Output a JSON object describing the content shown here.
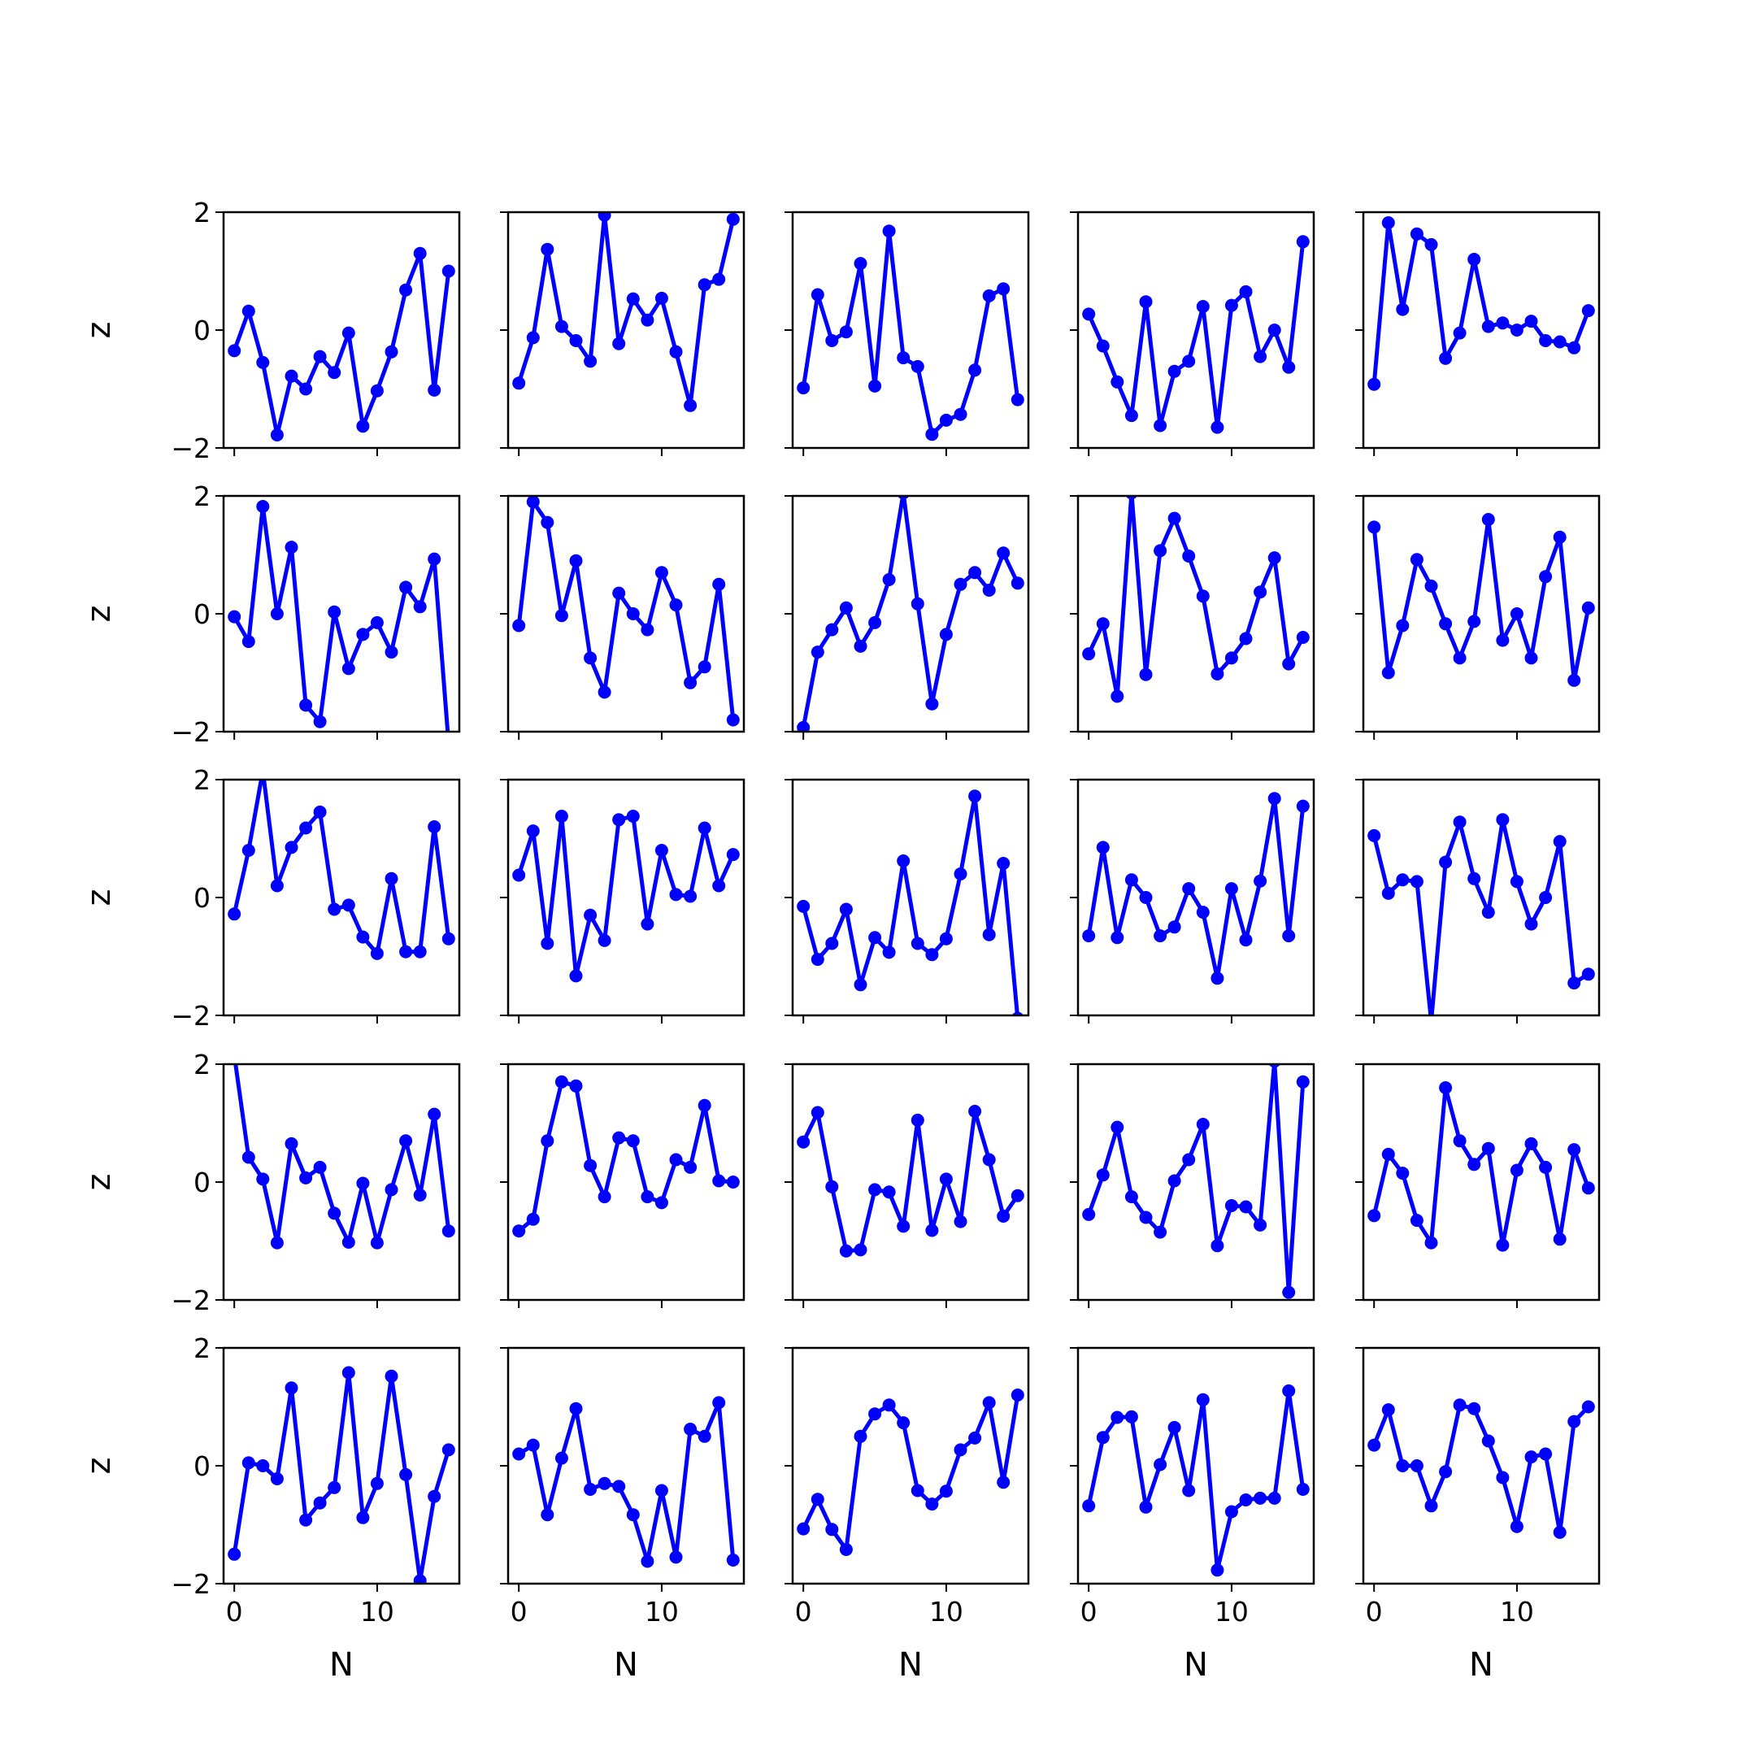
{
  "chart_data": {
    "type": "line",
    "layout": "5x5 grid of small multiples",
    "series_color": "#0000ff",
    "marker": "circle",
    "xlabel": "N",
    "ylabel": "z",
    "xlim": [
      -0.75,
      15.75
    ],
    "ylim": [
      -2,
      2
    ],
    "xticks": [
      0,
      10
    ],
    "xtick_labels": [
      "0",
      "10"
    ],
    "yticks": [
      -2,
      0,
      2
    ],
    "ytick_labels": [
      "−2",
      "0",
      "2"
    ],
    "x": [
      0,
      1,
      2,
      3,
      4,
      5,
      6,
      7,
      8,
      9,
      10,
      11,
      12,
      13,
      14,
      15
    ],
    "panels": [
      {
        "values": [
          -0.35,
          0.32,
          -0.55,
          -1.78,
          -0.78,
          -1.0,
          -0.45,
          -0.72,
          -0.05,
          -1.63,
          -1.03,
          -0.37,
          0.68,
          1.3,
          -1.02,
          1.0
        ]
      },
      {
        "values": [
          -0.9,
          -0.13,
          1.37,
          0.06,
          -0.18,
          -0.53,
          1.95,
          -0.23,
          0.53,
          0.17,
          0.54,
          -0.37,
          -1.28,
          0.77,
          0.86,
          1.88
        ]
      },
      {
        "values": [
          -0.98,
          0.6,
          -0.18,
          -0.03,
          1.13,
          -0.95,
          1.68,
          -0.47,
          -0.62,
          -1.77,
          -1.53,
          -1.43,
          -0.68,
          0.58,
          0.7,
          -1.18
        ]
      },
      {
        "values": [
          0.27,
          -0.27,
          -0.88,
          -1.45,
          0.48,
          -1.62,
          -0.7,
          -0.53,
          0.4,
          -1.65,
          0.42,
          0.65,
          -0.45,
          0.0,
          -0.63,
          1.5
        ]
      },
      {
        "values": [
          -0.92,
          1.82,
          0.35,
          1.63,
          1.45,
          -0.48,
          -0.05,
          1.2,
          0.06,
          0.12,
          0.0,
          0.15,
          -0.18,
          -0.2,
          -0.3,
          0.33
        ]
      },
      {
        "values": [
          -0.05,
          -0.47,
          1.82,
          0.0,
          1.13,
          -1.55,
          -1.83,
          0.03,
          -0.93,
          -0.35,
          -0.15,
          -0.65,
          0.45,
          0.12,
          0.93,
          -2.2
        ]
      },
      {
        "values": [
          -0.2,
          1.9,
          1.55,
          -0.03,
          0.9,
          -0.75,
          -1.33,
          0.35,
          0.0,
          -0.27,
          0.7,
          0.15,
          -1.17,
          -0.9,
          0.5,
          -1.8
        ]
      },
      {
        "values": [
          -1.93,
          -0.65,
          -0.27,
          0.1,
          -0.55,
          -0.15,
          0.58,
          2.05,
          0.17,
          -1.53,
          -0.35,
          0.5,
          0.7,
          0.4,
          1.03,
          0.52
        ]
      },
      {
        "values": [
          -0.68,
          -0.17,
          -1.4,
          2.05,
          -1.03,
          1.07,
          1.62,
          0.98,
          0.3,
          -1.02,
          -0.75,
          -0.42,
          0.37,
          0.95,
          -0.85,
          -0.4
        ]
      },
      {
        "values": [
          1.47,
          -1.0,
          -0.2,
          0.92,
          0.47,
          -0.17,
          -0.75,
          -0.13,
          1.6,
          -0.45,
          0.0,
          -0.75,
          0.63,
          1.3,
          -1.13,
          0.1
        ]
      },
      {
        "values": [
          -0.28,
          0.8,
          2.15,
          0.2,
          0.85,
          1.18,
          1.45,
          -0.2,
          -0.13,
          -0.67,
          -0.95,
          0.32,
          -0.92,
          -0.92,
          1.2,
          -0.7
        ]
      },
      {
        "values": [
          0.38,
          1.13,
          -0.78,
          1.38,
          -1.33,
          -0.3,
          -0.73,
          1.32,
          1.38,
          -0.45,
          0.8,
          0.05,
          0.02,
          1.18,
          0.2,
          0.73
        ]
      },
      {
        "values": [
          -0.15,
          -1.05,
          -0.78,
          -0.2,
          -1.48,
          -0.68,
          -0.93,
          0.62,
          -0.78,
          -0.97,
          -0.7,
          0.4,
          1.72,
          -0.63,
          0.58,
          -2.05
        ]
      },
      {
        "values": [
          -0.65,
          0.85,
          -0.68,
          0.3,
          0.0,
          -0.65,
          -0.5,
          0.15,
          -0.25,
          -1.37,
          0.15,
          -0.72,
          0.28,
          1.68,
          -0.65,
          1.55
        ]
      },
      {
        "values": [
          1.05,
          0.07,
          0.3,
          0.27,
          -2.1,
          0.6,
          1.28,
          0.32,
          -0.25,
          1.32,
          0.27,
          -0.45,
          0.0,
          0.95,
          -1.45,
          -1.3
        ]
      },
      {
        "values": [
          2.15,
          0.42,
          0.05,
          -1.03,
          0.65,
          0.07,
          0.25,
          -0.53,
          -1.02,
          -0.02,
          -1.03,
          -0.13,
          0.7,
          -0.22,
          1.15,
          -0.83
        ]
      },
      {
        "values": [
          -0.83,
          -0.63,
          0.7,
          1.7,
          1.63,
          0.28,
          -0.25,
          0.75,
          0.7,
          -0.25,
          -0.35,
          0.38,
          0.25,
          1.3,
          0.02,
          0.0
        ]
      },
      {
        "values": [
          0.68,
          1.18,
          -0.08,
          -1.17,
          -1.15,
          -0.13,
          -0.17,
          -0.75,
          1.05,
          -0.82,
          0.05,
          -0.67,
          1.2,
          0.38,
          -0.58,
          -0.23
        ]
      },
      {
        "values": [
          -0.55,
          0.12,
          0.93,
          -0.25,
          -0.6,
          -0.85,
          0.02,
          0.38,
          0.98,
          -1.08,
          -0.4,
          -0.42,
          -0.73,
          2.05,
          -1.87,
          1.7
        ]
      },
      {
        "values": [
          -0.57,
          0.47,
          0.15,
          -0.65,
          -1.03,
          1.6,
          0.7,
          0.3,
          0.57,
          -1.07,
          0.2,
          0.65,
          0.25,
          -0.97,
          0.55,
          -0.1
        ]
      },
      {
        "values": [
          -1.5,
          0.05,
          0.0,
          -0.22,
          1.32,
          -0.92,
          -0.63,
          -0.37,
          1.58,
          -0.88,
          -0.3,
          1.52,
          -0.15,
          -1.95,
          -0.52,
          0.27
        ]
      },
      {
        "values": [
          0.2,
          0.35,
          -0.83,
          0.13,
          0.97,
          -0.4,
          -0.3,
          -0.35,
          -0.83,
          -1.62,
          -0.42,
          -1.55,
          0.62,
          0.5,
          1.07,
          -1.6
        ]
      },
      {
        "values": [
          -1.07,
          -0.57,
          -1.08,
          -1.42,
          0.5,
          0.88,
          1.03,
          0.73,
          -0.42,
          -0.65,
          -0.43,
          0.27,
          0.47,
          1.07,
          -0.28,
          1.2
        ]
      },
      {
        "values": [
          -0.68,
          0.48,
          0.82,
          0.83,
          -0.7,
          0.02,
          0.65,
          -0.42,
          1.12,
          -1.77,
          -0.78,
          -0.58,
          -0.55,
          -0.55,
          1.27,
          -0.4
        ]
      },
      {
        "values": [
          0.35,
          0.95,
          0.0,
          0.0,
          -0.68,
          -0.1,
          1.03,
          0.97,
          0.42,
          -0.2,
          -1.03,
          0.15,
          0.2,
          -1.13,
          0.75,
          1.0
        ]
      }
    ]
  }
}
